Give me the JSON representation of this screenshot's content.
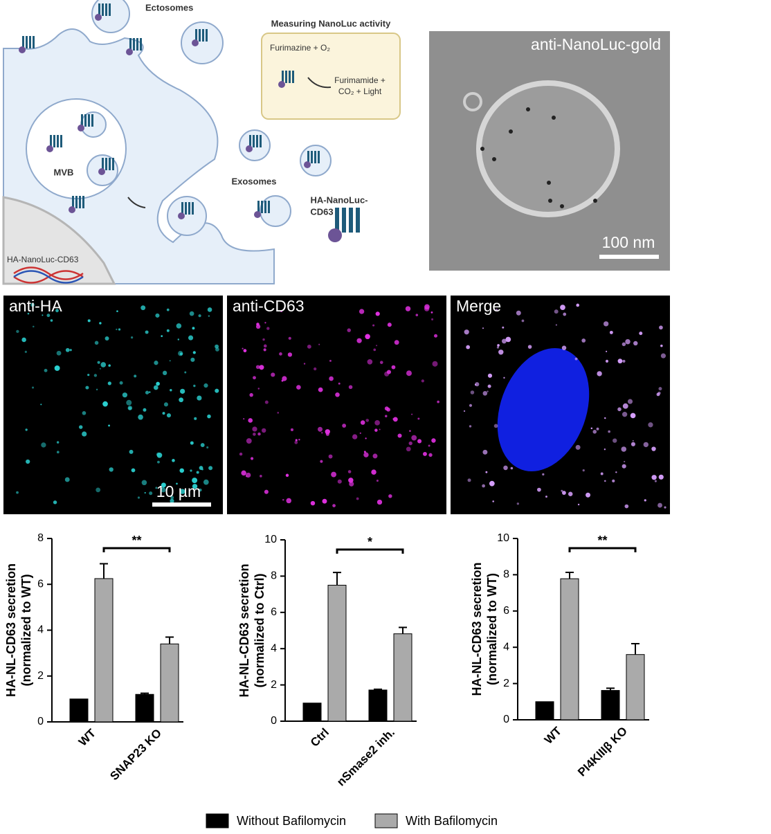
{
  "diagram": {
    "ectosomes": "Ectosomes",
    "assay_title": "Measuring NanoLuc activity",
    "substrate": "Furimazine + O₂",
    "product_1": "Furimamide +",
    "product_2": "CO₂ + Light",
    "mvb": "MVB",
    "exosomes": "Exosomes",
    "construct_1": "HA-NanoLuc-",
    "construct_2": "CD63",
    "gene": "HA-NanoLuc-CD63"
  },
  "micrographs": {
    "em_label": "anti-NanoLuc-gold",
    "em_scale": "100 nm",
    "panels": [
      "anti-HA",
      "anti-CD63",
      "Merge"
    ],
    "fluor_scale": "10 µm"
  },
  "chart_data": [
    {
      "type": "bar",
      "y_label": [
        "HA-NL-CD63 secretion",
        "(normalized to WT)"
      ],
      "categories": [
        "WT",
        "SNAP23 KO"
      ],
      "series": [
        {
          "name": "Without Bafilomycin",
          "color": "#000000",
          "values": [
            1,
            1.2
          ],
          "errors": [
            0,
            0.05
          ]
        },
        {
          "name": "With Bafilomycin",
          "color": "#aaaaaa",
          "values": [
            6.25,
            3.4
          ],
          "errors": [
            0.65,
            0.3
          ]
        }
      ],
      "ylim": [
        0,
        8
      ],
      "yticks": [
        0,
        2,
        4,
        6,
        8
      ],
      "significance": "**"
    },
    {
      "type": "bar",
      "y_label": [
        "HA-NL-CD63 secretion",
        "(normalized to Ctrl)"
      ],
      "categories": [
        "Ctrl",
        "nSmase2 inh."
      ],
      "series": [
        {
          "color": "#000000",
          "values": [
            1,
            1.72
          ],
          "errors": [
            0,
            0.04
          ]
        },
        {
          "color": "#aaaaaa",
          "values": [
            7.5,
            4.82
          ],
          "errors": [
            0.7,
            0.35
          ]
        }
      ],
      "ylim": [
        0,
        10
      ],
      "yticks": [
        0,
        2,
        4,
        6,
        8,
        10
      ],
      "significance": "*"
    },
    {
      "type": "bar",
      "y_label": [
        "HA-NL-CD63 secretion",
        "(normalized to WT)"
      ],
      "categories": [
        "WT",
        "PI4KIIIβ KO"
      ],
      "series": [
        {
          "color": "#000000",
          "values": [
            1,
            1.62
          ],
          "errors": [
            0,
            0.12
          ]
        },
        {
          "color": "#aaaaaa",
          "values": [
            7.78,
            3.6
          ],
          "errors": [
            0.35,
            0.6
          ]
        }
      ],
      "ylim": [
        0,
        10
      ],
      "yticks": [
        0,
        2,
        4,
        6,
        8,
        10
      ],
      "significance": "**"
    }
  ]
}
